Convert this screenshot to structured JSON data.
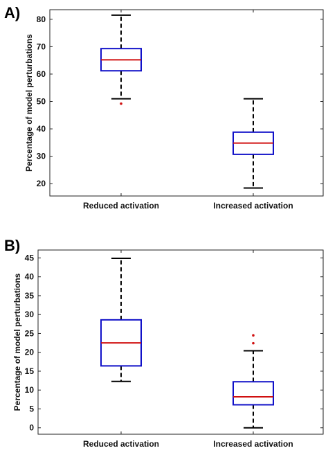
{
  "panels": [
    {
      "label": "A)"
    },
    {
      "label": "B)"
    }
  ],
  "chart_data": [
    {
      "type": "box",
      "ylabel": "Percentage of model perturbations",
      "xlabel": "",
      "categories": [
        "Reduced activation",
        "Increased activation"
      ],
      "ylim": [
        15.5,
        83.5
      ],
      "yticks": [
        20,
        30,
        40,
        50,
        60,
        70,
        80
      ],
      "boxes": [
        {
          "category": "Reduced activation",
          "whisker_low": 51,
          "q1": 61.2,
          "median": 65.2,
          "q3": 69.3,
          "whisker_high": 81.5,
          "outliers": [
            49.2
          ]
        },
        {
          "category": "Increased activation",
          "whisker_low": 18.4,
          "q1": 30.7,
          "median": 34.8,
          "q3": 38.8,
          "whisker_high": 51,
          "outliers": []
        }
      ],
      "colors": {
        "box": "#1010c8",
        "median": "#d01010",
        "whisker": "#000000",
        "outlier": "#d01010"
      }
    },
    {
      "type": "box",
      "ylabel": "Percentage of model perturbations",
      "xlabel": "",
      "categories": [
        "Reduced activation",
        "Increased activation"
      ],
      "ylim": [
        -1.7,
        47.1
      ],
      "yticks": [
        0,
        5,
        10,
        15,
        20,
        25,
        30,
        35,
        40,
        45
      ],
      "boxes": [
        {
          "category": "Reduced activation",
          "whisker_low": 12.3,
          "q1": 16.4,
          "median": 22.5,
          "q3": 28.6,
          "whisker_high": 44.9,
          "outliers": []
        },
        {
          "category": "Increased activation",
          "whisker_low": 0,
          "q1": 6.1,
          "median": 8.2,
          "q3": 12.2,
          "whisker_high": 20.4,
          "outliers": [
            22.4,
            24.5
          ]
        }
      ],
      "colors": {
        "box": "#1010c8",
        "median": "#d01010",
        "whisker": "#000000",
        "outlier": "#d01010"
      }
    }
  ]
}
